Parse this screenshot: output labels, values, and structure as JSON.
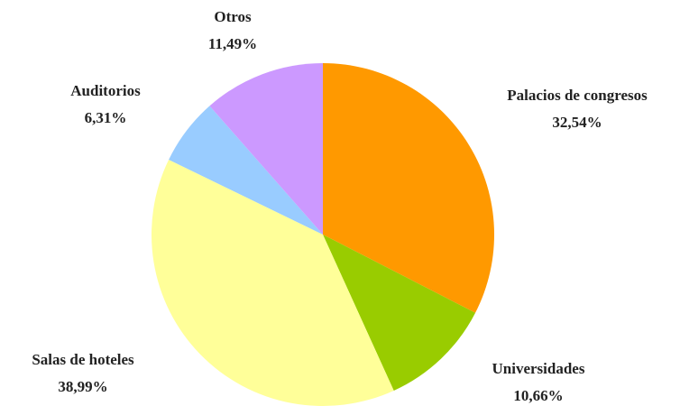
{
  "chart_data": {
    "type": "pie",
    "categories": [
      "Palacios de congresos",
      "Universidades",
      "Salas de hoteles",
      "Auditorios",
      "Otros"
    ],
    "values": [
      32.54,
      10.66,
      38.99,
      6.31,
      11.49
    ],
    "value_labels": [
      "32,54%",
      "10,66%",
      "38,99%",
      "6,31%",
      "11,49%"
    ],
    "colors": [
      "#ff9900",
      "#99cc00",
      "#ffff99",
      "#99ccff",
      "#cc99ff"
    ]
  }
}
